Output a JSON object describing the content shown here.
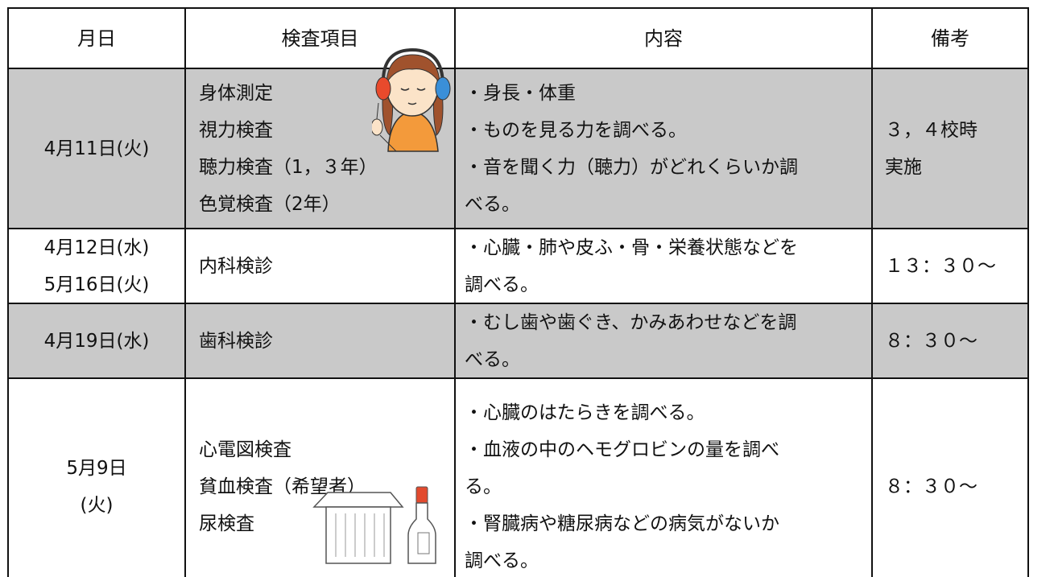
{
  "table": {
    "header": [
      "月日",
      "検査項目",
      "内容",
      "備考"
    ],
    "rows": [
      {
        "date": [
          "4月11日(火)"
        ],
        "items": [
          "身体測定",
          "視力検査",
          "聴力検査（1，３年）",
          "色覚検査（2年）"
        ],
        "content": [
          "・身長・体重",
          "・ものを見る力を調べる。",
          "・音を聞く力（聴力）がどれくらいか調",
          "べる。"
        ],
        "note": [
          "３，４校時",
          "実施"
        ]
      },
      {
        "date": [
          "4月12日(水)",
          "5月16日(火)"
        ],
        "items": [
          "内科検診"
        ],
        "content": [
          "・心臓・肺や皮ふ・骨・栄養状態などを",
          "調べる。"
        ],
        "note": [
          "１３：３０～"
        ]
      },
      {
        "date": [
          "4月19日(水)"
        ],
        "items": [
          "歯科検診"
        ],
        "content": [
          "・むし歯や歯ぐき、かみあわせなどを調",
          "べる。"
        ],
        "note": [
          "８：３０～"
        ]
      },
      {
        "date": [
          "5月9日",
          "(火)"
        ],
        "items": [
          "心電図検査",
          "貧血検査（希望者）",
          "尿検査"
        ],
        "content": [
          "・心臓のはたらきを調べる。",
          "・血液の中のヘモグロビンの量を調べ",
          "る。",
          "・腎臓病や糖尿病などの病気がないか",
          "調べる。"
        ],
        "note": [
          "８：３０～"
        ]
      }
    ]
  }
}
